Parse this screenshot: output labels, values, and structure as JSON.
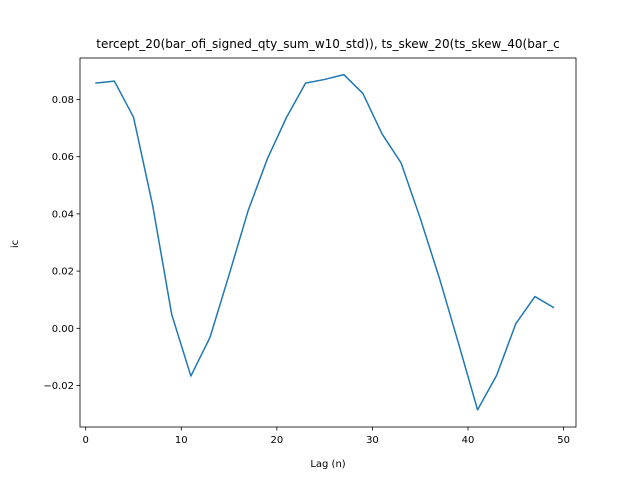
{
  "chart_data": {
    "type": "line",
    "title": "tercept_20(bar_ofi_signed_qty_sum_w10_std)), ts_skew_20(ts_skew_40(bar_c",
    "xlabel": "Lag (n)",
    "ylabel": "ic",
    "xlim": [
      -0.6,
      51.3
    ],
    "ylim": [
      -0.0345,
      0.0945
    ],
    "xticks": [
      0,
      10,
      20,
      30,
      40,
      50
    ],
    "yticks": [
      -0.02,
      0.0,
      0.02,
      0.04,
      0.06,
      0.08
    ],
    "xtick_labels": [
      "0",
      "10",
      "20",
      "30",
      "40",
      "50"
    ],
    "ytick_labels": [
      "−0.02",
      "0.00",
      "0.02",
      "0.04",
      "0.06",
      "0.08"
    ],
    "grid": false,
    "legend": "none",
    "series": [
      {
        "color": "#1f77b4",
        "x": [
          1,
          3,
          5,
          7,
          9,
          11,
          13,
          15,
          17,
          19,
          21,
          23,
          25,
          27,
          29,
          31,
          33,
          35,
          37,
          39,
          41,
          43,
          45,
          47,
          49
        ],
        "y": [
          0.0857,
          0.0864,
          0.0738,
          0.043,
          0.0048,
          -0.0167,
          -0.0032,
          0.0187,
          0.0412,
          0.0592,
          0.0737,
          0.0857,
          0.087,
          0.0887,
          0.0821,
          0.068,
          0.0578,
          0.0385,
          0.0176,
          -0.0052,
          -0.0285,
          -0.0164,
          0.0016,
          0.0111,
          0.0072
        ]
      }
    ]
  }
}
